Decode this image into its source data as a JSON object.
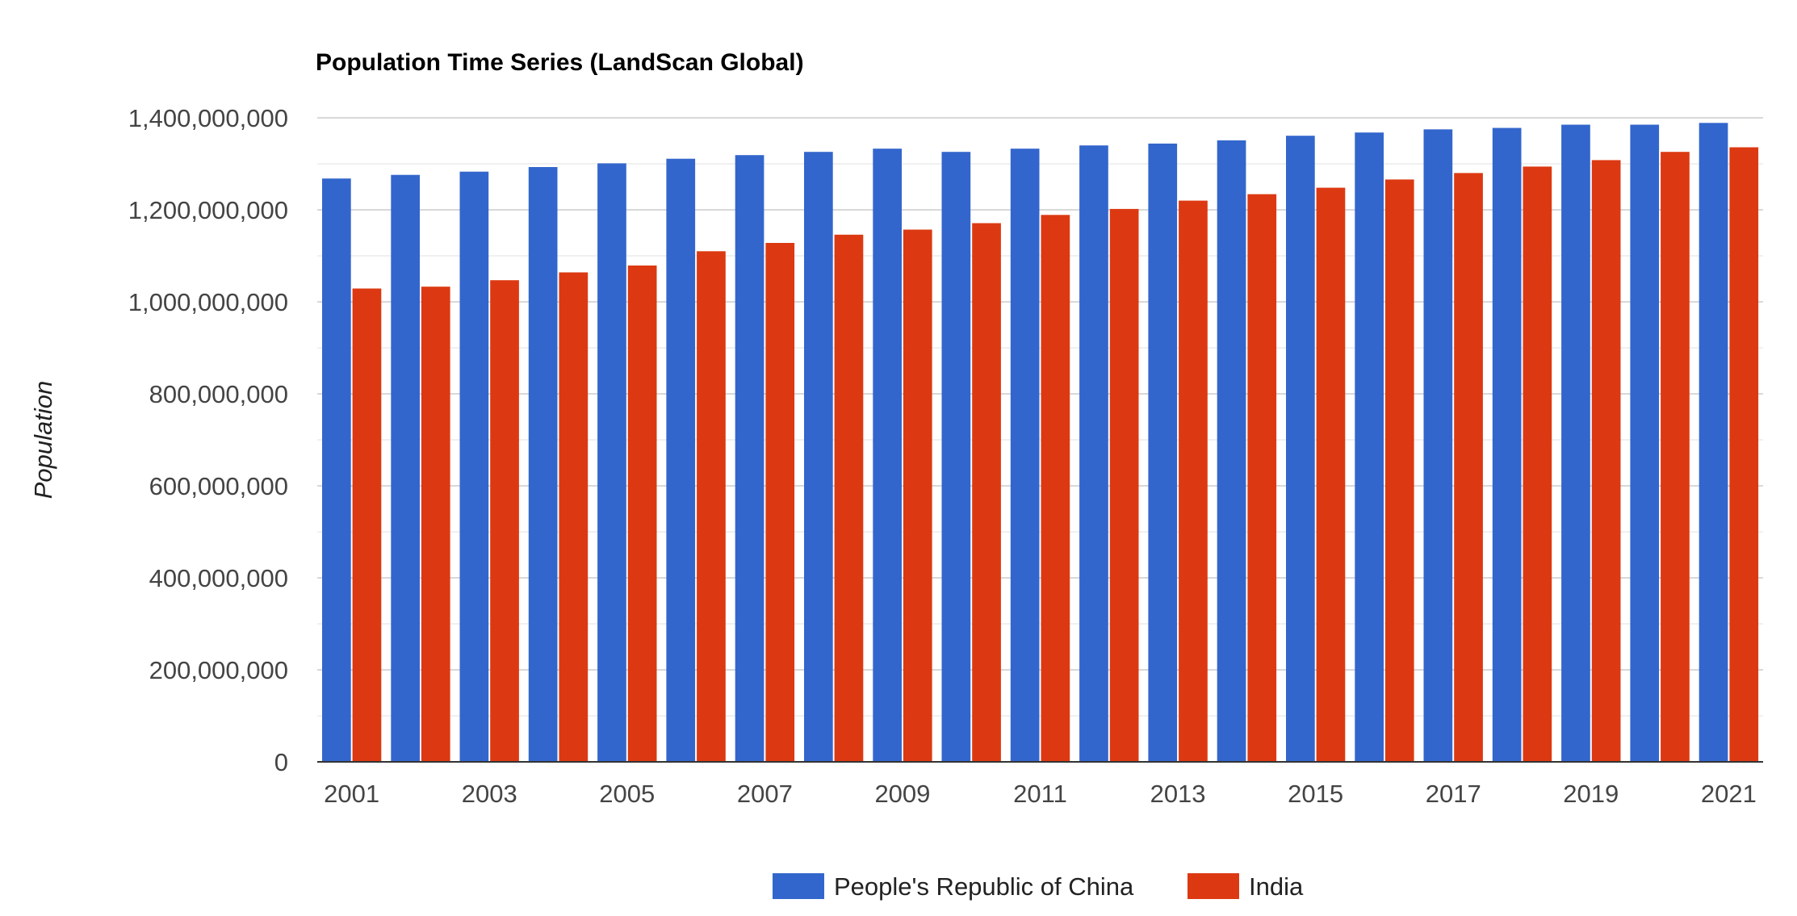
{
  "chart_data": {
    "type": "bar",
    "title": "Population Time Series (LandScan Global)",
    "xlabel": "",
    "ylabel": "Population",
    "ylim": [
      0,
      1400000000
    ],
    "yticks": [
      "0",
      "200,000,000",
      "400,000,000",
      "600,000,000",
      "800,000,000",
      "1,000,000,000",
      "1,200,000,000",
      "1,400,000,000"
    ],
    "xtick_labels": [
      "2001",
      "2003",
      "2005",
      "2007",
      "2009",
      "2011",
      "2013",
      "2015",
      "2017",
      "2019",
      "2021"
    ],
    "grid": true,
    "legend_position": "bottom",
    "categories": [
      "2001",
      "2002",
      "2003",
      "2004",
      "2005",
      "2006",
      "2007",
      "2008",
      "2009",
      "2010",
      "2011",
      "2012",
      "2013",
      "2014",
      "2015",
      "2016",
      "2017",
      "2018",
      "2019",
      "2020",
      "2021"
    ],
    "series": [
      {
        "name": "People's Republic of China",
        "color": "#3366cc",
        "values": [
          1268000000,
          1276000000,
          1283000000,
          1293000000,
          1301000000,
          1311000000,
          1319000000,
          1326000000,
          1333000000,
          1326000000,
          1333000000,
          1340000000,
          1344000000,
          1351000000,
          1361000000,
          1368000000,
          1375000000,
          1378000000,
          1385000000,
          1385000000,
          1389000000
        ]
      },
      {
        "name": "India",
        "color": "#dc3912",
        "values": [
          1029000000,
          1033000000,
          1047000000,
          1064000000,
          1079000000,
          1110000000,
          1128000000,
          1146000000,
          1157000000,
          1171000000,
          1189000000,
          1202000000,
          1220000000,
          1234000000,
          1248000000,
          1266000000,
          1280000000,
          1294000000,
          1308000000,
          1326000000,
          1336000000
        ]
      }
    ]
  }
}
